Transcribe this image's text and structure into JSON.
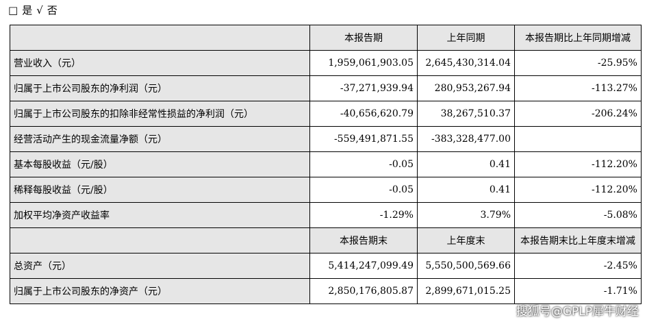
{
  "checkline": {
    "box": "□",
    "yes": "是",
    "check": "√",
    "no": "否"
  },
  "headers1": [
    "本报告期",
    "上年同期",
    "本报告期比上年同期增减"
  ],
  "rows1": [
    {
      "label": "营业收入（元）",
      "cur": "1,959,061,903.05",
      "prev": "2,645,430,314.04",
      "chg": "-25.95%"
    },
    {
      "label": "归属于上市公司股东的净利润（元）",
      "cur": "-37,271,939.94",
      "prev": "280,953,267.94",
      "chg": "-113.27%"
    },
    {
      "label": "归属于上市公司股东的扣除非经常性损益的净利润（元）",
      "cur": "-40,656,620.79",
      "prev": "38,267,510.37",
      "chg": "-206.24%"
    },
    {
      "label": "经营活动产生的现金流量净额（元）",
      "cur": "-559,491,871.55",
      "prev": "-383,328,477.00",
      "chg": ""
    },
    {
      "label": "基本每股收益（元/股）",
      "cur": "-0.05",
      "prev": "0.41",
      "chg": "-112.20%"
    },
    {
      "label": "稀释每股收益（元/股）",
      "cur": "-0.05",
      "prev": "0.41",
      "chg": "-112.20%"
    },
    {
      "label": "加权平均净资产收益率",
      "cur": "-1.29%",
      "prev": "3.79%",
      "chg": "-5.08%"
    }
  ],
  "headers2": [
    "本报告期末",
    "上年度末",
    "本报告期末比上年度末增减"
  ],
  "rows2": [
    {
      "label": "总资产（元）",
      "cur": "5,414,247,099.49",
      "prev": "5,550,500,569.66",
      "chg": "-2.45%"
    },
    {
      "label": "归属于上市公司股东的净资产（元）",
      "cur": "2,850,176,805.87",
      "prev": "2,899,671,015.25",
      "chg": "-1.71%"
    }
  ],
  "watermark": "搜狐号@GPLP犀牛财经"
}
